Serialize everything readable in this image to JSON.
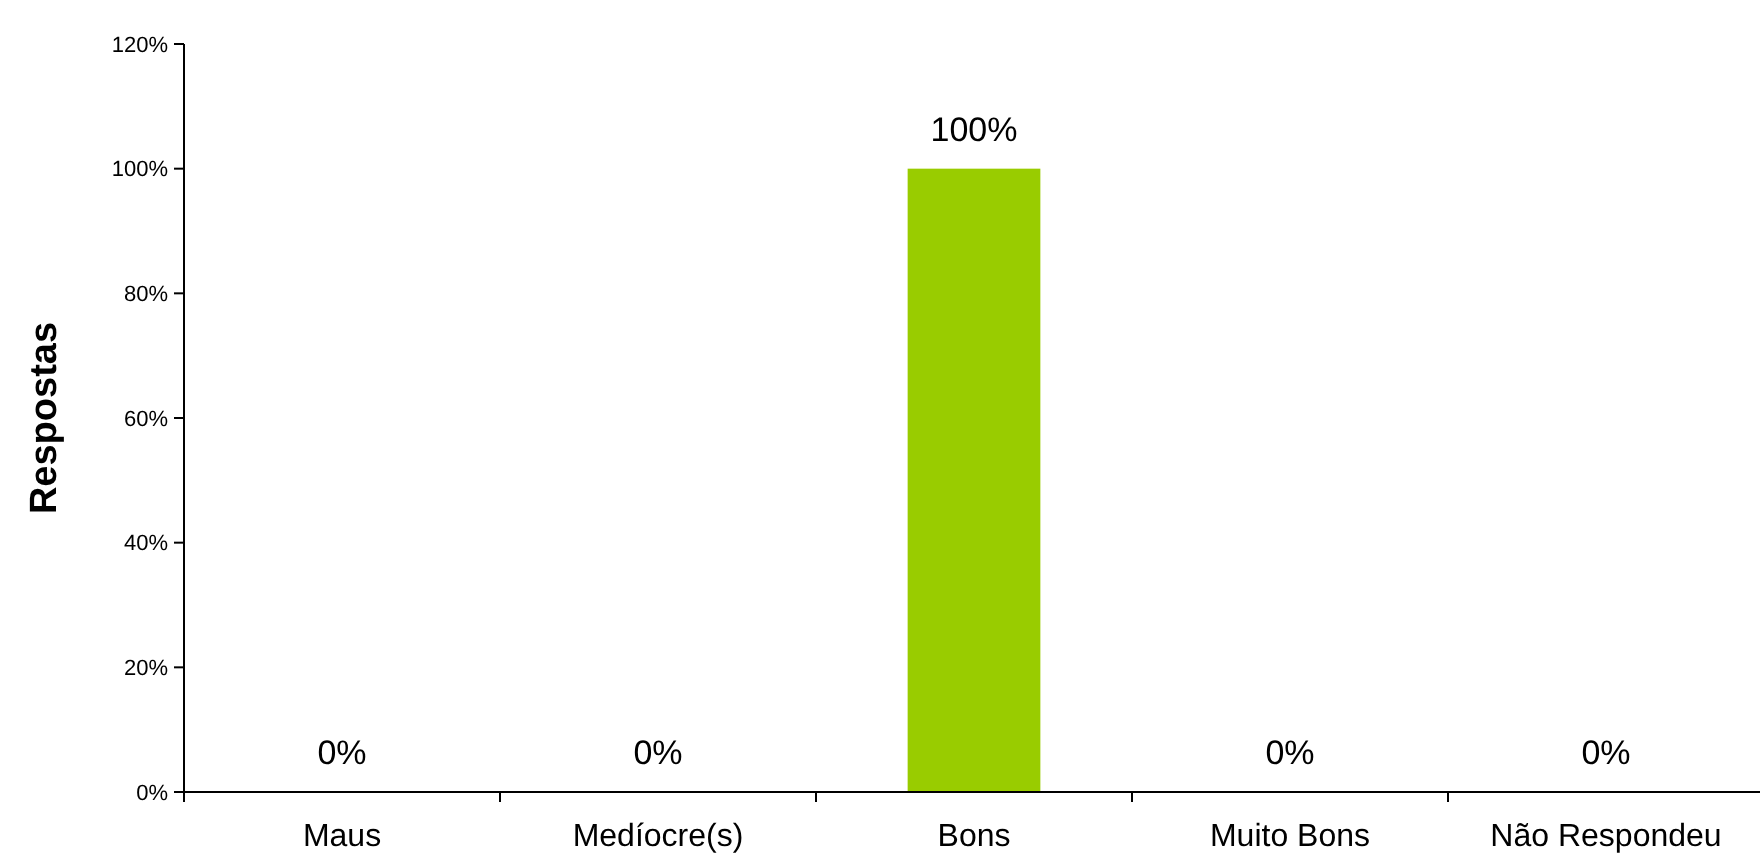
{
  "chart_data": {
    "type": "bar",
    "ylabel": "Respostas",
    "categories": [
      "Maus",
      "Medíocre(s)",
      "Bons",
      "Muito Bons",
      "Não Respondeu"
    ],
    "values": [
      0,
      0,
      100,
      0,
      0
    ],
    "color": "#99cc00",
    "value_labels": [
      "0%",
      "0%",
      "100%",
      "0%",
      "0%"
    ],
    "ylim": [
      0,
      120
    ],
    "yticks": [
      {
        "value": 0,
        "label": "0%"
      },
      {
        "value": 20,
        "label": "20%"
      },
      {
        "value": 40,
        "label": "40%"
      },
      {
        "value": 60,
        "label": "60%"
      },
      {
        "value": 80,
        "label": "80%"
      },
      {
        "value": 100,
        "label": "100%"
      },
      {
        "value": 120,
        "label": "120%"
      }
    ],
    "grid": false
  }
}
